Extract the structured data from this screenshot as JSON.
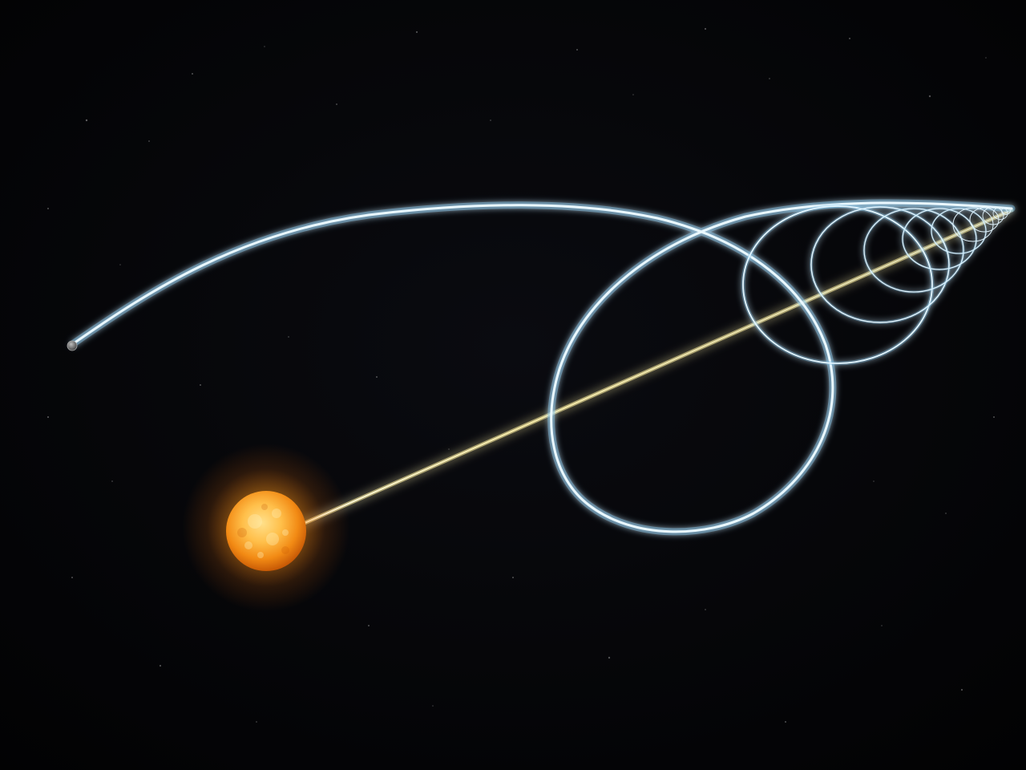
{
  "scene": {
    "subject": "star-orbit-illustration",
    "colors": {
      "background": "#020203",
      "orbit_glow": "#7fc4e8",
      "orbit_core": "#eaf8ff",
      "beam": "#fff3b0",
      "star_core": "#ffd36a",
      "star_surface": "#f28a14",
      "star_glow": "#ff9d1a",
      "planet": "#8a8a8a"
    },
    "icons": [
      "star-icon",
      "planet-icon"
    ]
  }
}
